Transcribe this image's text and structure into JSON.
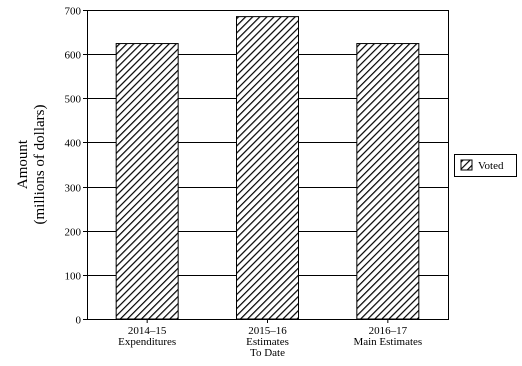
{
  "chart_data": {
    "type": "bar",
    "categories": [
      [
        "2014–15",
        "Expenditures"
      ],
      [
        "2015–16",
        "Estimates",
        "To Date"
      ],
      [
        "2016–17",
        "Main Estimates"
      ]
    ],
    "series": [
      {
        "name": "Voted",
        "values": [
          624,
          685,
          624
        ]
      }
    ],
    "ylabel": [
      "Amount",
      "(millions of dollars)"
    ],
    "ylim": [
      0,
      700
    ],
    "yticks": [
      0,
      100,
      200,
      300,
      400,
      500,
      600,
      700
    ],
    "grid": true,
    "legend_position": "right",
    "colors": {
      "bar_fill": "#ffffff",
      "bar_hatch": "#000000",
      "axis": "#000000",
      "grid": "#000000"
    }
  }
}
